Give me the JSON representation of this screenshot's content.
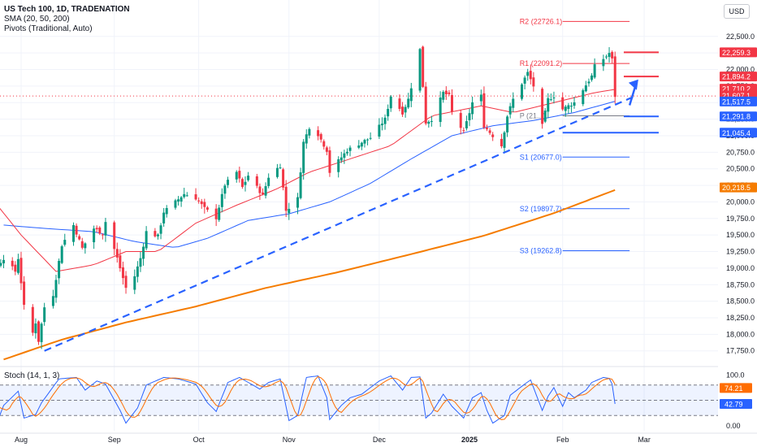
{
  "header": {
    "title": "US Tech 100, 1D, TRADENATION",
    "sma": "SMA (20, 50, 200)",
    "pivots": "Pivots (Traditional, Auto)",
    "currency": "USD",
    "stoch_label": "Stoch (14, 1, 3)"
  },
  "colors": {
    "up": "#089981",
    "down": "#f23645",
    "sma20": "#f23645",
    "sma50": "#2962ff",
    "sma200": "#f57c00",
    "pivot": "#2962ff",
    "resistance": "#f23645",
    "support": "#2962ff"
  },
  "chart_data": [
    {
      "type": "candlestick",
      "title": "US Tech 100, 1D, TRADENATION",
      "ylim": [
        17550,
        23050
      ],
      "yticks": [
        17750,
        18000,
        18250,
        18500,
        18750,
        19000,
        19250,
        19500,
        19750,
        20000,
        20250,
        20500,
        20750,
        21000,
        21250,
        21500,
        21750,
        22000,
        22250,
        22500
      ],
      "ytick_labels": [
        "17,750.0",
        "18,000.0",
        "18,250.0",
        "18,500.0",
        "18,750.0",
        "19,000.0",
        "19,250.0",
        "19,500.0",
        "19,750.0",
        "20,000.0",
        "20,250.0",
        "20,500.0",
        "20,750.0",
        "21,000.0",
        "21,250.0",
        "21,500.0",
        "21,750.0",
        "22,000.0",
        "22,250.0",
        "22,500.0"
      ],
      "x_labels": [
        {
          "label": "Aug",
          "date": "2024-08-01"
        },
        {
          "label": "Sep",
          "date": "2024-09-02"
        },
        {
          "label": "Oct",
          "date": "2024-10-01"
        },
        {
          "label": "Nov",
          "date": "2024-11-01"
        },
        {
          "label": "Dec",
          "date": "2024-12-02"
        },
        {
          "label": "2025",
          "date": "2025-01-02"
        },
        {
          "label": "Feb",
          "date": "2025-02-03"
        },
        {
          "label": "Mar",
          "date": "2025-03-03"
        }
      ],
      "close_anchors": [
        [
          "2024-07-08",
          20500
        ],
        [
          "2024-07-10",
          20620
        ],
        [
          "2024-07-15",
          20150
        ],
        [
          "2024-07-18",
          19780
        ],
        [
          "2024-07-22",
          19600
        ],
        [
          "2024-07-24",
          19050
        ],
        [
          "2024-07-26",
          19150
        ],
        [
          "2024-07-30",
          18950
        ],
        [
          "2024-07-31",
          19150
        ],
        [
          "2024-08-02",
          18420
        ],
        [
          "2024-08-05",
          18020
        ],
        [
          "2024-08-06",
          18180
        ],
        [
          "2024-08-07",
          17900
        ],
        [
          "2024-08-09",
          18410
        ],
        [
          "2024-08-12",
          18600
        ],
        [
          "2024-08-15",
          19350
        ],
        [
          "2024-08-19",
          19650
        ],
        [
          "2024-08-22",
          19300
        ],
        [
          "2024-08-26",
          19600
        ],
        [
          "2024-08-29",
          19520
        ],
        [
          "2024-08-30",
          19700
        ],
        [
          "2024-09-03",
          19150
        ],
        [
          "2024-09-06",
          18700
        ],
        [
          "2024-09-09",
          18880
        ],
        [
          "2024-09-11",
          19150
        ],
        [
          "2024-09-13",
          19550
        ],
        [
          "2024-09-17",
          19480
        ],
        [
          "2024-09-19",
          19850
        ],
        [
          "2024-09-23",
          20000
        ],
        [
          "2024-09-26",
          20120
        ],
        [
          "2024-09-30",
          20060
        ],
        [
          "2024-10-03",
          19900
        ],
        [
          "2024-10-07",
          19760
        ],
        [
          "2024-10-10",
          20260
        ],
        [
          "2024-10-14",
          20450
        ],
        [
          "2024-10-16",
          20220
        ],
        [
          "2024-10-18",
          20400
        ],
        [
          "2024-10-23",
          20100
        ],
        [
          "2024-10-25",
          20380
        ],
        [
          "2024-10-29",
          20550
        ],
        [
          "2024-10-31",
          19870
        ],
        [
          "2024-11-04",
          20050
        ],
        [
          "2024-11-06",
          20900
        ],
        [
          "2024-11-08",
          21130
        ],
        [
          "2024-11-11",
          21020
        ],
        [
          "2024-11-14",
          20780
        ],
        [
          "2024-11-15",
          20450
        ],
        [
          "2024-11-18",
          20620
        ],
        [
          "2024-11-21",
          20780
        ],
        [
          "2024-11-26",
          20900
        ],
        [
          "2024-11-29",
          20970
        ],
        [
          "2024-12-04",
          21250
        ],
        [
          "2024-12-06",
          21600
        ],
        [
          "2024-12-10",
          21350
        ],
        [
          "2024-12-12",
          21550
        ],
        [
          "2024-12-16",
          22300
        ],
        [
          "2024-12-18",
          21200
        ],
        [
          "2024-12-20",
          21250
        ],
        [
          "2024-12-24",
          21650
        ],
        [
          "2024-12-26",
          21600
        ],
        [
          "2024-12-27",
          21350
        ],
        [
          "2024-12-31",
          21050
        ],
        [
          "2025-01-03",
          21500
        ],
        [
          "2025-01-06",
          21600
        ],
        [
          "2025-01-07",
          21150
        ],
        [
          "2025-01-10",
          21000
        ],
        [
          "2025-01-13",
          20850
        ],
        [
          "2025-01-15",
          21300
        ],
        [
          "2025-01-17",
          21550
        ],
        [
          "2025-01-22",
          21950
        ],
        [
          "2025-01-24",
          21750
        ],
        [
          "2025-01-27",
          21150
        ],
        [
          "2025-01-29",
          21550
        ],
        [
          "2025-01-31",
          21600
        ],
        [
          "2025-02-03",
          21400
        ],
        [
          "2025-02-07",
          21500
        ],
        [
          "2025-02-10",
          21700
        ],
        [
          "2025-02-13",
          21900
        ],
        [
          "2025-02-14",
          22050
        ],
        [
          "2025-02-18",
          22200
        ],
        [
          "2025-02-19",
          22250
        ],
        [
          "2025-02-20",
          22150
        ],
        [
          "2025-02-21",
          21600
        ]
      ],
      "sma_20": [
        [
          "2024-07-08",
          20200
        ],
        [
          "2024-07-22",
          20050
        ],
        [
          "2024-08-01",
          19500
        ],
        [
          "2024-08-13",
          18950
        ],
        [
          "2024-08-26",
          19050
        ],
        [
          "2024-09-06",
          19250
        ],
        [
          "2024-09-17",
          19250
        ],
        [
          "2024-09-30",
          19680
        ],
        [
          "2024-10-14",
          19950
        ],
        [
          "2024-10-28",
          20200
        ],
        [
          "2024-11-08",
          20450
        ],
        [
          "2024-11-22",
          20650
        ],
        [
          "2024-12-06",
          20850
        ],
        [
          "2024-12-20",
          21300
        ],
        [
          "2025-01-06",
          21450
        ],
        [
          "2025-01-17",
          21350
        ],
        [
          "2025-01-31",
          21500
        ],
        [
          "2025-02-14",
          21650
        ],
        [
          "2025-02-21",
          21700
        ]
      ],
      "sma_50": [
        [
          "2024-07-26",
          19650
        ],
        [
          "2024-08-09",
          19600
        ],
        [
          "2024-08-26",
          19550
        ],
        [
          "2024-09-09",
          19400
        ],
        [
          "2024-09-23",
          19310
        ],
        [
          "2024-10-04",
          19450
        ],
        [
          "2024-10-18",
          19720
        ],
        [
          "2024-11-01",
          19820
        ],
        [
          "2024-11-15",
          20000
        ],
        [
          "2024-11-29",
          20280
        ],
        [
          "2024-12-13",
          20650
        ],
        [
          "2024-12-27",
          21000
        ],
        [
          "2025-01-10",
          21150
        ],
        [
          "2025-01-24",
          21230
        ],
        [
          "2025-02-07",
          21350
        ],
        [
          "2025-02-21",
          21520
        ]
      ],
      "sma_200": [
        [
          "2024-07-26",
          17620
        ],
        [
          "2024-08-15",
          17920
        ],
        [
          "2024-09-06",
          18180
        ],
        [
          "2024-09-30",
          18420
        ],
        [
          "2024-10-24",
          18700
        ],
        [
          "2024-11-18",
          18940
        ],
        [
          "2024-12-12",
          19200
        ],
        [
          "2025-01-07",
          19490
        ],
        [
          "2025-01-31",
          19830
        ],
        [
          "2025-02-21",
          20180
        ]
      ],
      "pivots": [
        {
          "label": "R2 (22726.1)",
          "value": 22726.1
        },
        {
          "label": "R1 (22091.2)",
          "value": 22091.2
        },
        {
          "label": "P (21...)",
          "value": 21300
        },
        {
          "label": "S1 (20677.0)",
          "value": 20677.0
        },
        {
          "label": "S2 (19897.7)",
          "value": 19897.7
        },
        {
          "label": "S3 (19262.8)",
          "value": 19262.8
        }
      ],
      "pivot_start": "2025-02-03",
      "pivot_end": "2025-02-26",
      "trendline": {
        "from": [
          "2024-08-09",
          17750
        ],
        "to": [
          "2025-02-28",
          21600
        ]
      },
      "resistance_lines": [
        {
          "value": 22259.3,
          "from": "2025-02-24",
          "to": "2025-03-08"
        },
        {
          "value": 21894.2,
          "from": "2025-02-24",
          "to": "2025-03-08"
        }
      ],
      "support_lines": [
        {
          "value": 21291.8,
          "from": "2025-02-24",
          "to": "2025-03-08"
        },
        {
          "value": 21045.4,
          "from": "2025-02-03",
          "to": "2025-03-08"
        }
      ],
      "arrow": {
        "from": [
          "2025-02-26",
          21460
        ],
        "to": [
          "2025-03-01",
          21850
        ]
      },
      "price_labels": [
        {
          "text": "22,259.3",
          "value": 22259.3,
          "color": "#f23645"
        },
        {
          "text": "21,894.2",
          "value": 21894.2,
          "color": "#f23645"
        },
        {
          "text": "21,710.2",
          "value": 21710.2,
          "color": "#f23645"
        },
        {
          "text": "21,607.1",
          "value": 21607.1,
          "color": "#f23645"
        },
        {
          "text": "21,517.5",
          "value": 21517.5,
          "color": "#2962ff"
        },
        {
          "text": "21,291.8",
          "value": 21291.8,
          "color": "#2962ff"
        },
        {
          "text": "21,045.4",
          "value": 21045.4,
          "color": "#2962ff"
        },
        {
          "text": "20,218.5",
          "value": 20218.5,
          "color": "#f57c00"
        }
      ]
    },
    {
      "type": "line",
      "title": "Stoch (14, 1, 3)",
      "ylim": [
        -10,
        110
      ],
      "yticks": [
        0,
        100
      ],
      "ytick_labels": [
        "0.00",
        "100.0"
      ],
      "bands": [
        80,
        50,
        20
      ],
      "k_anchors": [
        [
          "2024-07-08",
          92
        ],
        [
          "2024-07-12",
          88
        ],
        [
          "2024-07-17",
          35
        ],
        [
          "2024-07-22",
          55
        ],
        [
          "2024-07-24",
          10
        ],
        [
          "2024-07-26",
          40
        ],
        [
          "2024-07-31",
          68
        ],
        [
          "2024-08-02",
          15
        ],
        [
          "2024-08-06",
          22
        ],
        [
          "2024-08-08",
          45
        ],
        [
          "2024-08-14",
          92
        ],
        [
          "2024-08-20",
          95
        ],
        [
          "2024-08-23",
          70
        ],
        [
          "2024-08-27",
          88
        ],
        [
          "2024-08-30",
          82
        ],
        [
          "2024-09-04",
          30
        ],
        [
          "2024-09-06",
          5
        ],
        [
          "2024-09-10",
          35
        ],
        [
          "2024-09-13",
          80
        ],
        [
          "2024-09-19",
          95
        ],
        [
          "2024-09-24",
          92
        ],
        [
          "2024-09-30",
          82
        ],
        [
          "2024-10-04",
          45
        ],
        [
          "2024-10-07",
          28
        ],
        [
          "2024-10-11",
          85
        ],
        [
          "2024-10-15",
          95
        ],
        [
          "2024-10-22",
          72
        ],
        [
          "2024-10-25",
          85
        ],
        [
          "2024-10-29",
          92
        ],
        [
          "2024-11-01",
          10
        ],
        [
          "2024-11-04",
          20
        ],
        [
          "2024-11-07",
          95
        ],
        [
          "2024-11-11",
          98
        ],
        [
          "2024-11-14",
          55
        ],
        [
          "2024-11-15",
          12
        ],
        [
          "2024-11-19",
          40
        ],
        [
          "2024-11-22",
          55
        ],
        [
          "2024-11-26",
          62
        ],
        [
          "2024-12-02",
          88
        ],
        [
          "2024-12-06",
          98
        ],
        [
          "2024-12-10",
          70
        ],
        [
          "2024-12-13",
          95
        ],
        [
          "2024-12-16",
          96
        ],
        [
          "2024-12-18",
          15
        ],
        [
          "2024-12-20",
          25
        ],
        [
          "2024-12-24",
          62
        ],
        [
          "2024-12-27",
          38
        ],
        [
          "2024-12-31",
          15
        ],
        [
          "2025-01-03",
          55
        ],
        [
          "2025-01-06",
          65
        ],
        [
          "2025-01-08",
          30
        ],
        [
          "2025-01-10",
          5
        ],
        [
          "2025-01-14",
          20
        ],
        [
          "2025-01-16",
          60
        ],
        [
          "2025-01-21",
          82
        ],
        [
          "2025-01-23",
          90
        ],
        [
          "2025-01-27",
          30
        ],
        [
          "2025-01-29",
          58
        ],
        [
          "2025-01-31",
          75
        ],
        [
          "2025-02-03",
          38
        ],
        [
          "2025-02-05",
          65
        ],
        [
          "2025-02-07",
          55
        ],
        [
          "2025-02-11",
          70
        ],
        [
          "2025-02-13",
          85
        ],
        [
          "2025-02-17",
          95
        ],
        [
          "2025-02-19",
          93
        ],
        [
          "2025-02-20",
          82
        ],
        [
          "2025-02-21",
          42.79
        ]
      ],
      "d_label": {
        "text": "74.21",
        "value": 74.21
      },
      "k_label": {
        "text": "42.79",
        "value": 42.79
      }
    }
  ]
}
